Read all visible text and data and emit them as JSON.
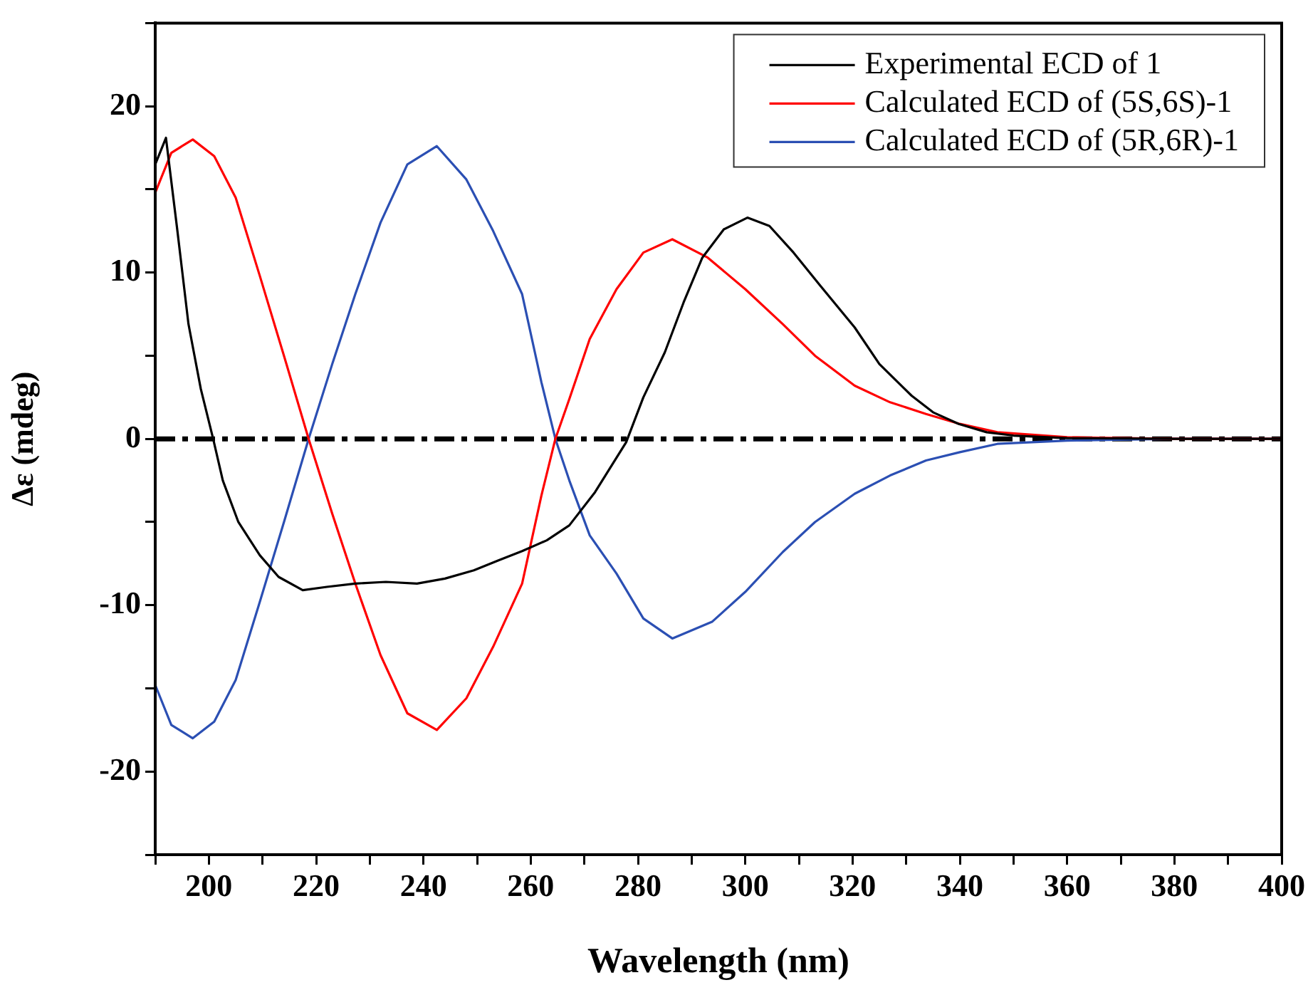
{
  "chart_data": {
    "type": "line",
    "xlabel": "Wavelength (nm)",
    "ylabel": "Δε (mdeg)",
    "xlim": [
      190,
      400
    ],
    "xticks": [
      {
        "value": 190,
        "label": null
      },
      200,
      {
        "value": 210,
        "label": null
      },
      220,
      {
        "value": 230,
        "label": null
      },
      240,
      {
        "value": 250,
        "label": null
      },
      260,
      {
        "value": 270,
        "label": null
      },
      280,
      {
        "value": 290,
        "label": null
      },
      300,
      {
        "value": 310,
        "label": null
      },
      320,
      {
        "value": 330,
        "label": null
      },
      340,
      {
        "value": 350,
        "label": null
      },
      360,
      {
        "value": 370,
        "label": null
      },
      380,
      {
        "value": 390,
        "label": null
      },
      400
    ],
    "ylim": [
      -25,
      25
    ],
    "yticks": [
      {
        "value": -25,
        "label": null
      },
      -20,
      {
        "value": -15,
        "label": null
      },
      -10,
      {
        "value": -5,
        "label": null
      },
      0,
      {
        "value": 5,
        "label": null
      },
      10,
      {
        "value": 15,
        "label": null
      },
      20,
      {
        "value": 25,
        "label": null
      }
    ],
    "grid": false,
    "legend": "top right",
    "marker": "none",
    "line_style": "solid",
    "ref_lines": [
      {
        "axis": "y",
        "value": 0,
        "color": "#000000",
        "line_style": "dashed"
      }
    ],
    "series": [
      {
        "name": "Experimental ECD of 1",
        "color": "#000000",
        "x": [
          190,
          192,
          194.1,
          196.2,
          198.5,
          200.8,
          202.6,
          205.5,
          209.5,
          213,
          217.5,
          222,
          227.3,
          233,
          238.8,
          244,
          249.4,
          254,
          258.4,
          263,
          267.2,
          272,
          277.8,
          281,
          285,
          288.5,
          292,
          296,
          300.4,
          304.5,
          309,
          314,
          320.4,
          325,
          331,
          335,
          339.8,
          345,
          350,
          360,
          380,
          400
        ],
        "values": [
          16.5,
          18.1,
          12.6,
          6.9,
          3,
          0,
          -2.5,
          -5,
          -7,
          -8.3,
          -9.1,
          -8.9,
          -8.7,
          -8.6,
          -8.7,
          -8.4,
          -7.9,
          -7.3,
          -6.75,
          -6.1,
          -5.2,
          -3.2,
          -0.2,
          2.5,
          5.2,
          8.2,
          10.9,
          12.6,
          13.3,
          12.8,
          11.2,
          9.2,
          6.7,
          4.5,
          2.6,
          1.6,
          0.9,
          0.4,
          0.2,
          0.05,
          0,
          0
        ]
      },
      {
        "name": "Calculated ECD of (5S,6S)-1",
        "color": "#ff0000",
        "x": [
          190,
          193,
          197,
          201,
          205,
          209.5,
          214,
          218.6,
          223,
          227.3,
          232,
          237,
          242.5,
          248,
          253,
          258.4,
          262,
          264.6,
          267.2,
          271,
          276,
          281,
          286.4,
          293,
          300,
          307,
          313,
          320.4,
          327,
          333.7,
          340,
          347,
          360,
          380,
          400
        ],
        "values": [
          14.8,
          17.2,
          18,
          17,
          14.5,
          9.8,
          5,
          0,
          -4.5,
          -8.7,
          -13,
          -16.5,
          -17.5,
          -15.6,
          -12.5,
          -8.7,
          -3.4,
          0,
          2.4,
          6,
          9,
          11.2,
          12,
          10.9,
          9,
          6.9,
          5,
          3.2,
          2.2,
          1.5,
          0.9,
          0.4,
          0.1,
          0,
          0
        ]
      },
      {
        "name": "Calculated ECD of (5R,6R)-1",
        "color": "#2b4fb3",
        "x": [
          190,
          193,
          197,
          201,
          205,
          209.5,
          214,
          218.6,
          223,
          227.3,
          232,
          237,
          242.5,
          248,
          253,
          258.4,
          262,
          264.6,
          267.2,
          271,
          276,
          281,
          286.4,
          293.8,
          300,
          307,
          313,
          320.4,
          327,
          333.7,
          340,
          347,
          360,
          380,
          400
        ],
        "values": [
          -14.8,
          -17.2,
          -18,
          -17,
          -14.5,
          -9.8,
          -5,
          0,
          4.5,
          8.7,
          13,
          16.5,
          17.6,
          15.6,
          12.5,
          8.7,
          3.4,
          0,
          -2.5,
          -5.8,
          -8.1,
          -10.8,
          -12,
          -11,
          -9.2,
          -6.8,
          -5,
          -3.3,
          -2.2,
          -1.3,
          -0.8,
          -0.3,
          -0.1,
          0,
          0
        ]
      }
    ]
  }
}
